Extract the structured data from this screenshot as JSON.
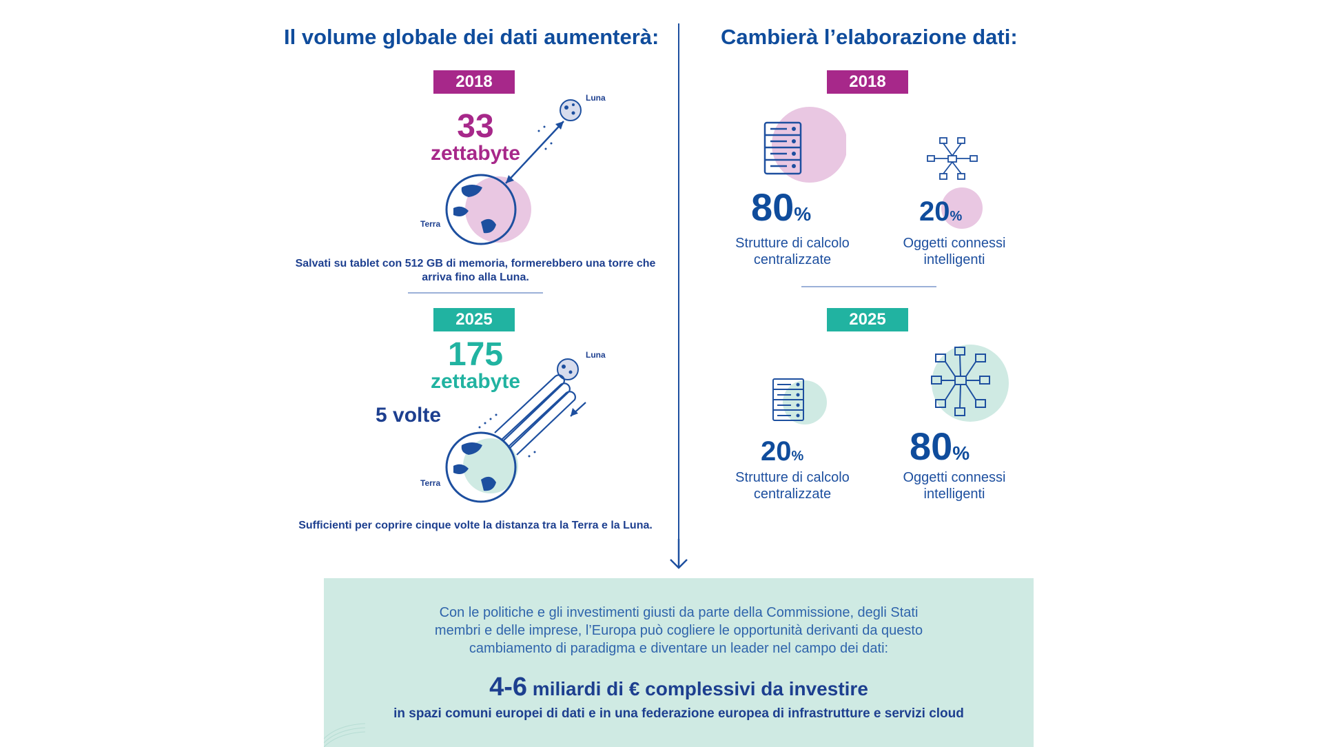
{
  "left": {
    "title": "Il volume globale dei dati aumenterà:",
    "y2018": {
      "year": "2018",
      "number": "33",
      "unit": "zettabyte",
      "moon_label": "Luna",
      "earth_label": "Terra",
      "caption": "Salvati su tablet con 512 GB di memoria, formerebbero una torre che arriva fino alla Luna."
    },
    "y2025": {
      "year": "2025",
      "number": "175",
      "unit": "zettabyte",
      "multiplier": "5 volte",
      "moon_label": "Luna",
      "earth_label": "Terra",
      "caption": "Sufficienti per coprire cinque volte la distanza tra la Terra e la Luna."
    }
  },
  "right": {
    "title": "Cambierà l’elaborazione dati:",
    "y2018": {
      "year": "2018",
      "central": {
        "value": "80",
        "unit": "%",
        "label_line1": "Strutture di calcolo",
        "label_line2": "centralizzate"
      },
      "edge": {
        "value": "20",
        "unit": "%",
        "label_line1": "Oggetti connessi",
        "label_line2": "intelligenti"
      }
    },
    "y2025": {
      "year": "2025",
      "central": {
        "value": "20",
        "unit": "%",
        "label_line1": "Strutture di calcolo",
        "label_line2": "centralizzate"
      },
      "edge": {
        "value": "80",
        "unit": "%",
        "label_line1": "Oggetti connessi",
        "label_line2": "intelligenti"
      }
    }
  },
  "bottom": {
    "text_line1": "Con le politiche e gli investimenti giusti da parte della Commissione, degli Stati",
    "text_line2": "membri e delle imprese, l’Europa può cogliere le opportunità derivanti da questo",
    "text_line3": "cambiamento di paradigma e diventare un leader nel campo dei dati:",
    "highlight_number": "4-6",
    "highlight_text": "miliardi di € complessivi da investire",
    "footer": "in spazi comuni europei di dati e in una federazione europea di infrastrutture e servizi cloud"
  },
  "colors": {
    "purple": "#a7288a",
    "teal": "#21b3a1",
    "navy": "#0f4c9c",
    "pink_bubble": "#e9c7e2",
    "mint_bubble": "#cfeae3"
  },
  "icons": [
    "moon-icon",
    "earth-icon",
    "server-icon",
    "network-icon",
    "down-arrow-icon"
  ]
}
